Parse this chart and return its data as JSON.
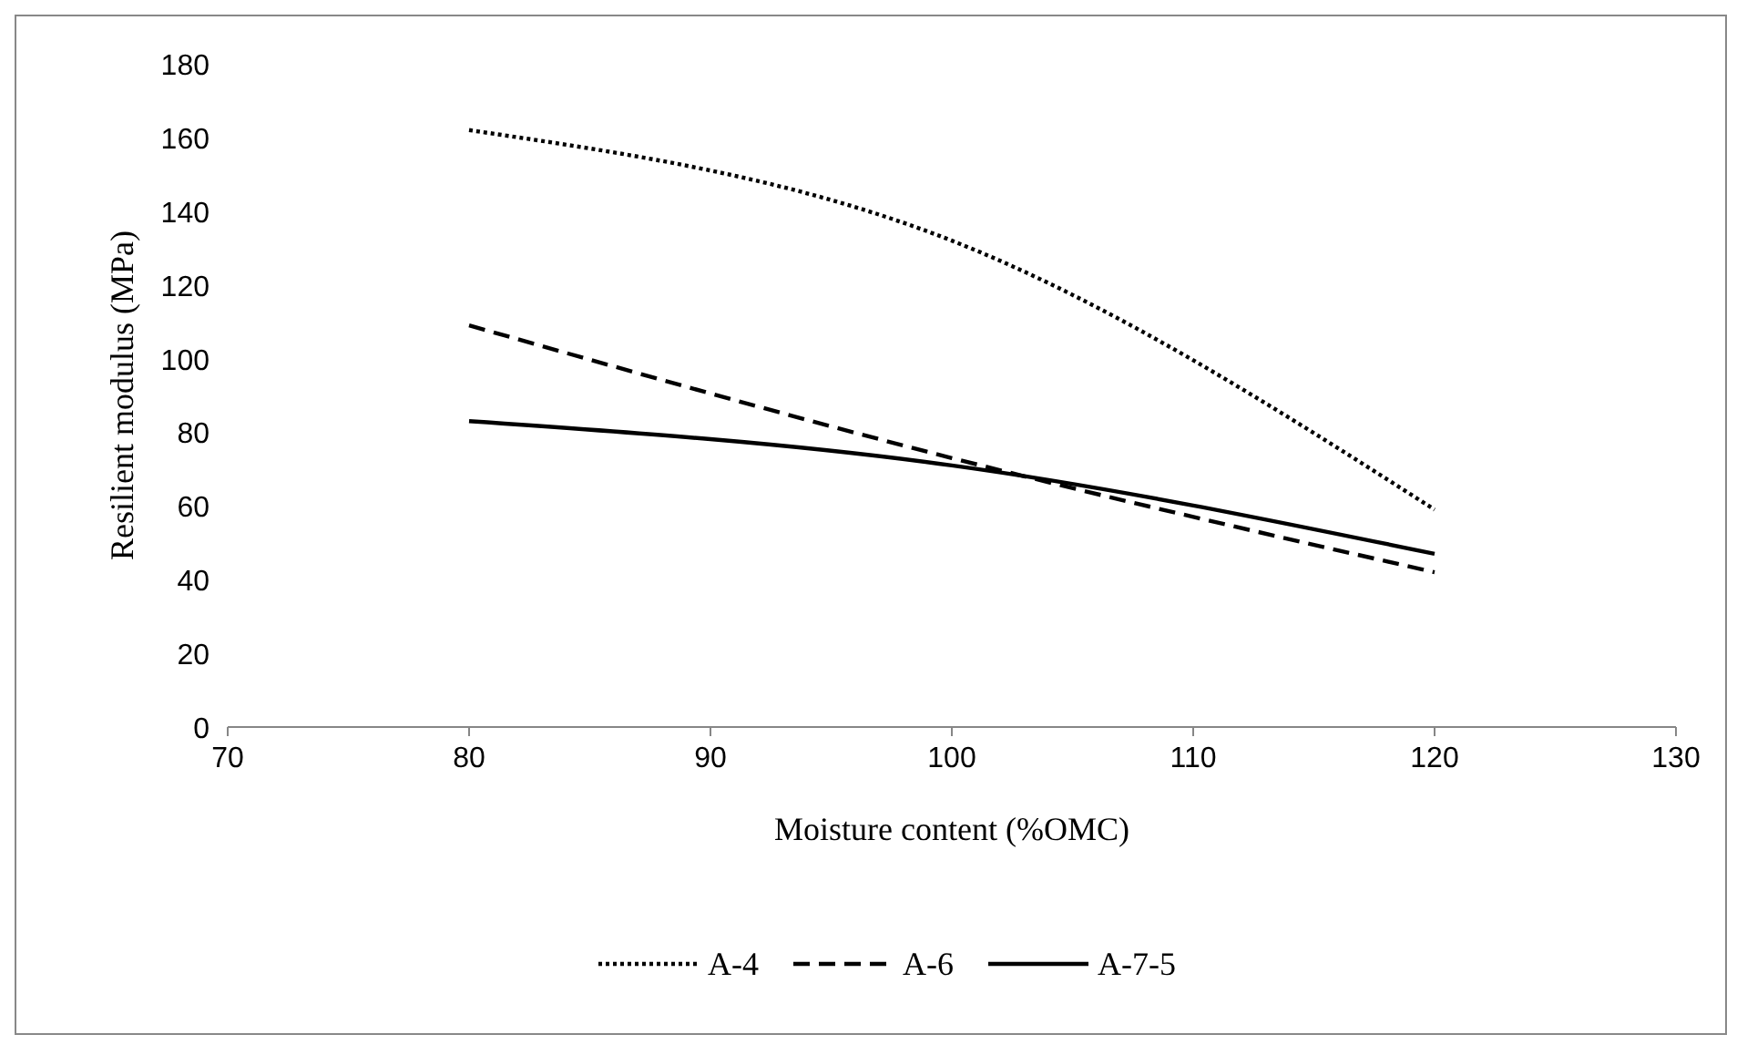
{
  "chart_data": {
    "type": "line",
    "xlabel": "Moisture content (%OMC)",
    "ylabel": "Resilient modulus (MPa)",
    "x": [
      80,
      100,
      120
    ],
    "xlim": [
      70,
      130
    ],
    "xticks": [
      70,
      80,
      90,
      100,
      110,
      120,
      130
    ],
    "ylim": [
      0,
      180
    ],
    "yticks": [
      0,
      20,
      40,
      60,
      80,
      100,
      120,
      140,
      160,
      180
    ],
    "grid": false,
    "legend": "bottom",
    "marker": "none",
    "series": [
      {
        "name": "A-4",
        "color": "#000000",
        "line_style": "dotted",
        "values": [
          162,
          132,
          59
        ]
      },
      {
        "name": "A-6",
        "color": "#000000",
        "line_style": "dashed",
        "values": [
          109,
          73,
          42
        ]
      },
      {
        "name": "A-7-5",
        "color": "#000000",
        "line_style": "solid",
        "values": [
          83,
          71,
          47
        ]
      }
    ]
  }
}
